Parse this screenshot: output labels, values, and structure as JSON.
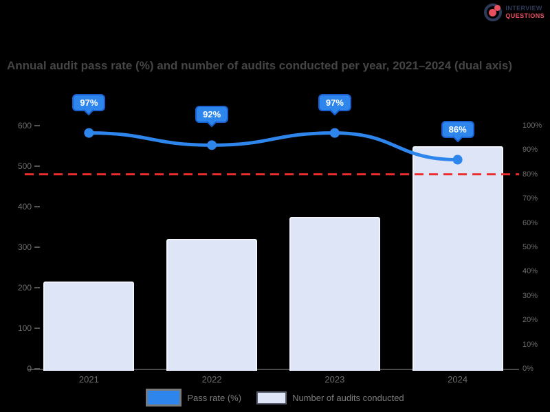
{
  "logo": {
    "line1": "INTERVIEW",
    "line2": "QUESTIONS"
  },
  "title": "Annual audit pass rate (%) and number of audits conducted per year, 2021–2024 (dual axis)",
  "colors": {
    "line": "#2e86ec",
    "line_border": "#1b5fd0",
    "bar_fill": "#dde5f7",
    "bar_border": "#f2f5fd",
    "target": "#ef2d2d",
    "axis_text": "#6e6e6e",
    "title_text": "#454545",
    "logo_navy": "#2e3a59",
    "logo_red": "#e85060"
  },
  "chart_data": {
    "type": "bar",
    "subtype": "dual-axis bar + line combo",
    "title": "Annual audit pass rate (%) and number of audits conducted per year, 2021–2024 (dual axis)",
    "categories": [
      "2021",
      "2022",
      "2023",
      "2024"
    ],
    "series": [
      {
        "name": "Pass rate (%)",
        "type": "line",
        "axis": "right",
        "values": [
          97,
          92,
          97,
          86
        ],
        "point_labels": [
          "97%",
          "92%",
          "97%",
          "86%"
        ],
        "color": "#2e86ec"
      },
      {
        "name": "Number of audits conducted",
        "type": "bar",
        "axis": "left",
        "values": [
          215,
          320,
          375,
          550
        ],
        "color": "#dde5f7"
      }
    ],
    "left_axis": {
      "min": 0,
      "max": 600,
      "step": 100,
      "tick_labels": [
        "600",
        "500",
        "400",
        "300",
        "200",
        "100",
        "0"
      ]
    },
    "right_axis": {
      "min": 0,
      "max": 100,
      "step": 10,
      "tick_labels": [
        "100%",
        "90%",
        "80%",
        "70%",
        "60%",
        "50%",
        "40%",
        "30%",
        "20%",
        "10%",
        "0%"
      ]
    },
    "target_line": {
      "value": 80,
      "color": "#ef2d2d",
      "style": "dashed"
    },
    "legend_position": "bottom",
    "grid": false,
    "background": "#000000"
  },
  "legend": {
    "item1": "Pass rate (%)",
    "item2": "Number of audits conducted"
  }
}
